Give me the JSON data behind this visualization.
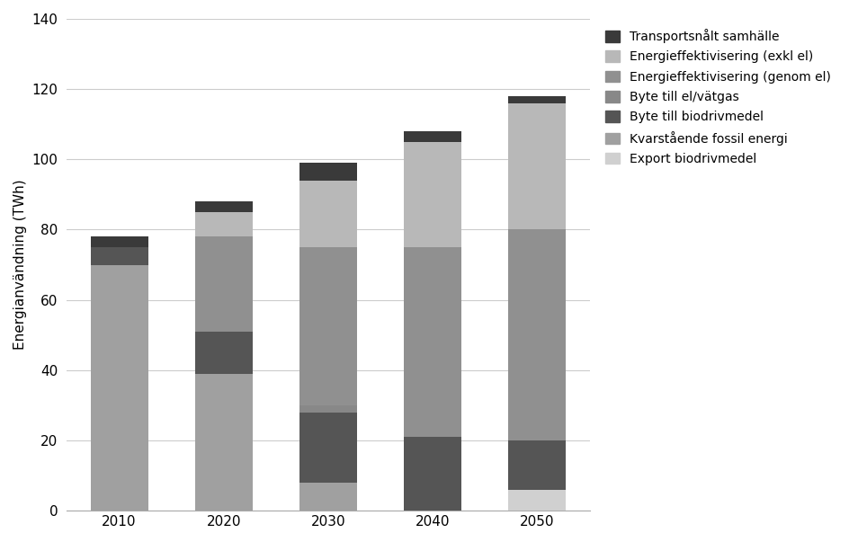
{
  "years": [
    "2010",
    "2020",
    "2030",
    "2040",
    "2050"
  ],
  "segments": {
    "Export biodrivmedel": {
      "values": [
        0,
        0,
        0,
        0,
        6
      ],
      "color": "#d0d0d0"
    },
    "Kvarstående fossil energi": {
      "values": [
        70,
        39,
        8,
        0,
        0
      ],
      "color": "#a0a0a0"
    },
    "Byte till biodrivmedel": {
      "values": [
        5,
        12,
        20,
        21,
        14
      ],
      "color": "#555555"
    },
    "Byte till el/vätgas": {
      "values": [
        0,
        0,
        2,
        0,
        0
      ],
      "color": "#888888"
    },
    "Energieffektivisering (genom el)": {
      "values": [
        0,
        27,
        45,
        54,
        60
      ],
      "color": "#909090"
    },
    "Energieffektivisering (exkl el)": {
      "values": [
        0,
        7,
        19,
        30,
        36
      ],
      "color": "#b8b8b8"
    },
    "Transportsnålt samhälle": {
      "values": [
        3,
        3,
        5,
        3,
        2
      ],
      "color": "#3a3a3a"
    }
  },
  "ylabel": "Energianvändning (TWh)",
  "ylim": [
    0,
    140
  ],
  "yticks": [
    0,
    20,
    40,
    60,
    80,
    100,
    120,
    140
  ],
  "bar_width": 0.55,
  "figsize": [
    9.45,
    6.03
  ],
  "dpi": 100,
  "background_color": "#ffffff",
  "draw_order": [
    "Export biodrivmedel",
    "Kvarstående fossil energi",
    "Byte till biodrivmedel",
    "Byte till el/vätgas",
    "Energieffektivisering (genom el)",
    "Energieffektivisering (exkl el)",
    "Transportsnålt samhälle"
  ],
  "legend_order": [
    "Transportsnålt samhälle",
    "Energieffektivisering (exkl el)",
    "Energieffektivisering (genom el)",
    "Byte till el/vätgas",
    "Byte till biodrivmedel",
    "Kvarstående fossil energi",
    "Export biodrivmedel"
  ]
}
